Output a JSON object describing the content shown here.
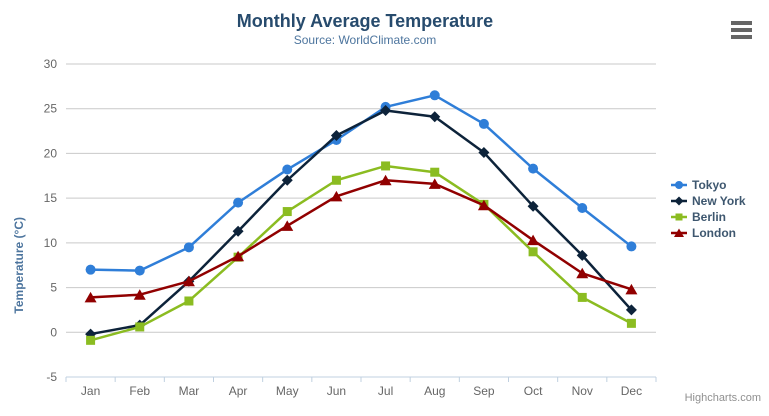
{
  "title": "Monthly Average Temperature",
  "subtitle": "Source: WorldClimate.com",
  "credits": "Highcharts.com",
  "colors": {
    "title_text": "#274b6d",
    "subtitle_text": "#4d759e",
    "axis_title_text": "#4d759e",
    "tick_label": "#666666",
    "gridline": "#c9c9c9",
    "axis_line": "#c0d0e0",
    "legend_text": "#3e576f",
    "credits_text": "#909090",
    "menu_icon": "#666666",
    "background": "#ffffff"
  },
  "menu_icon": "hamburger-icon",
  "chart_data": {
    "type": "line",
    "title": "Monthly Average Temperature",
    "subtitle": "Source: WorldClimate.com",
    "categories": [
      "Jan",
      "Feb",
      "Mar",
      "Apr",
      "May",
      "Jun",
      "Jul",
      "Aug",
      "Sep",
      "Oct",
      "Nov",
      "Dec"
    ],
    "series": [
      {
        "name": "Tokyo",
        "color": "#2f7ed8",
        "marker": "circle",
        "values": [
          7.0,
          6.9,
          9.5,
          14.5,
          18.2,
          21.5,
          25.2,
          26.5,
          23.3,
          18.3,
          13.9,
          9.6
        ]
      },
      {
        "name": "New York",
        "color": "#0d233a",
        "marker": "diamond",
        "values": [
          -0.2,
          0.8,
          5.7,
          11.3,
          17.0,
          22.0,
          24.8,
          24.1,
          20.1,
          14.1,
          8.6,
          2.5
        ]
      },
      {
        "name": "Berlin",
        "color": "#8bbc21",
        "marker": "square",
        "values": [
          -0.9,
          0.6,
          3.5,
          8.4,
          13.5,
          17.0,
          18.6,
          17.9,
          14.3,
          9.0,
          3.9,
          1.0
        ]
      },
      {
        "name": "London",
        "color": "#910000",
        "marker": "triangle",
        "values": [
          3.9,
          4.2,
          5.7,
          8.5,
          11.9,
          15.2,
          17.0,
          16.6,
          14.2,
          10.3,
          6.6,
          4.8
        ]
      }
    ],
    "xlabel": "",
    "ylabel": "Temperature (°C)",
    "ylim": [
      -5,
      30
    ],
    "ytick_interval": 5,
    "yticks": [
      -5,
      0,
      5,
      10,
      15,
      20,
      25,
      30
    ],
    "grid": "horizontal",
    "legend_position": "right"
  }
}
